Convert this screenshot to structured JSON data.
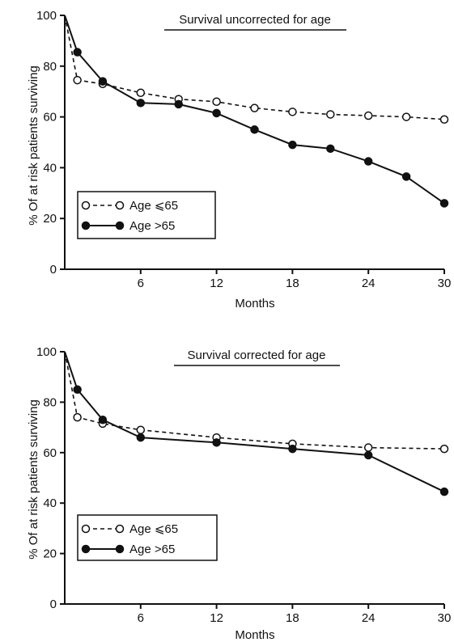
{
  "chart_data": [
    {
      "type": "line",
      "title": "Survival uncorrected for age",
      "xlabel": "Months",
      "ylabel": "% Of at risk patients surviving",
      "xlim": [
        0,
        30
      ],
      "ylim": [
        0,
        100
      ],
      "xticks": [
        6,
        12,
        18,
        24,
        30
      ],
      "yticks": [
        0,
        20,
        40,
        60,
        80,
        100
      ],
      "grid": false,
      "legend_position": "lower-left",
      "series": [
        {
          "name": "Age ⩽65",
          "style": "dashed",
          "marker": "open-circle",
          "x": [
            0,
            1,
            3,
            6,
            9,
            12,
            15,
            18,
            21,
            24,
            27,
            30
          ],
          "y": [
            100,
            74.5,
            73,
            69.5,
            67,
            66,
            63.5,
            62,
            61,
            60.5,
            60,
            59
          ]
        },
        {
          "name": "Age >65",
          "style": "solid",
          "marker": "filled-circle",
          "x": [
            0,
            1,
            3,
            6,
            9,
            12,
            15,
            18,
            21,
            24,
            27,
            30
          ],
          "y": [
            100,
            85.5,
            74,
            65.5,
            65,
            61.5,
            55,
            49,
            47.5,
            42.5,
            36.5,
            26
          ]
        }
      ]
    },
    {
      "type": "line",
      "title": "Survival corrected for age",
      "xlabel": "Months",
      "ylabel": "% Of at risk patients surviving",
      "xlim": [
        0,
        30
      ],
      "ylim": [
        0,
        100
      ],
      "xticks": [
        6,
        12,
        18,
        24,
        30
      ],
      "yticks": [
        0,
        20,
        40,
        60,
        80,
        100
      ],
      "grid": false,
      "legend_position": "lower-left",
      "series": [
        {
          "name": "Age ⩽65",
          "style": "dashed",
          "marker": "open-circle",
          "x": [
            0,
            1,
            3,
            6,
            12,
            18,
            24,
            30
          ],
          "y": [
            100,
            74,
            71.5,
            69,
            66,
            63.5,
            62,
            61.5
          ]
        },
        {
          "name": "Age >65",
          "style": "solid",
          "marker": "filled-circle",
          "x": [
            0,
            1,
            3,
            6,
            12,
            18,
            24,
            30
          ],
          "y": [
            100,
            85,
            73,
            66,
            64,
            61.5,
            59,
            44.5
          ]
        }
      ]
    }
  ]
}
